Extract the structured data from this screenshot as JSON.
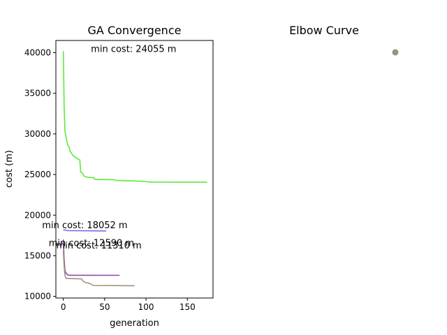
{
  "chart_data": [
    {
      "type": "line",
      "title": "GA Convergence",
      "xlabel": "generation",
      "ylabel": "cost (m)",
      "xlim": [
        -9,
        181
      ],
      "ylim": [
        9800,
        41500
      ],
      "xticks": [
        0,
        50,
        100,
        150
      ],
      "yticks": [
        10000,
        15000,
        20000,
        25000,
        30000,
        35000,
        40000
      ],
      "grid": false,
      "series": [
        {
          "color": "#5ee83a",
          "points": [
            [
              0,
              40200
            ],
            [
              1,
              33500
            ],
            [
              2,
              30300
            ],
            [
              3,
              29800
            ],
            [
              4,
              29300
            ],
            [
              5,
              28700
            ],
            [
              7,
              28400
            ],
            [
              8,
              27900
            ],
            [
              10,
              27600
            ],
            [
              12,
              27300
            ],
            [
              15,
              27100
            ],
            [
              18,
              26900
            ],
            [
              20,
              26800
            ],
            [
              21,
              25300
            ],
            [
              23,
              25200
            ],
            [
              25,
              24800
            ],
            [
              28,
              24700
            ],
            [
              30,
              24650
            ],
            [
              37,
              24600
            ],
            [
              38,
              24400
            ],
            [
              62,
              24350
            ],
            [
              63,
              24280
            ],
            [
              88,
              24200
            ],
            [
              100,
              24150
            ],
            [
              103,
              24080
            ],
            [
              174,
              24055
            ]
          ],
          "annotation": {
            "text": "min cost: 24055 m",
            "x": 85,
            "y": 40100
          }
        },
        {
          "color": "#7a6cf2",
          "points": [
            [
              0,
              18200
            ],
            [
              5,
              18100
            ],
            [
              20,
              18080
            ],
            [
              52,
              18052
            ]
          ],
          "annotation": {
            "text": "min cost: 18052 m",
            "x": 26,
            "y": 18400
          }
        },
        {
          "color": "#8a4ba8",
          "points": [
            [
              0,
              17000
            ],
            [
              1,
              14600
            ],
            [
              2,
              13200
            ],
            [
              3,
              12900
            ],
            [
              5,
              12650
            ],
            [
              8,
              12600
            ],
            [
              68,
              12590
            ]
          ],
          "annotation": {
            "text": "min cost: 12590 m",
            "x": 34,
            "y": 16200
          }
        },
        {
          "color": "#9a9478",
          "points": [
            [
              0,
              15500
            ],
            [
              1,
              13800
            ],
            [
              2,
              12600
            ],
            [
              3,
              12250
            ],
            [
              5,
              12200
            ],
            [
              22,
              12150
            ],
            [
              24,
              11850
            ],
            [
              27,
              11700
            ],
            [
              30,
              11650
            ],
            [
              33,
              11550
            ],
            [
              36,
              11350
            ],
            [
              86,
              11310
            ]
          ],
          "annotation": {
            "text": "min cost: 11310 m",
            "x": 43,
            "y": 15900
          }
        }
      ]
    },
    {
      "type": "scatter",
      "title": "Elbow Curve",
      "grid": false,
      "points": [
        {
          "x": 0,
          "y": 0,
          "color": "#9a9478"
        }
      ]
    }
  ]
}
